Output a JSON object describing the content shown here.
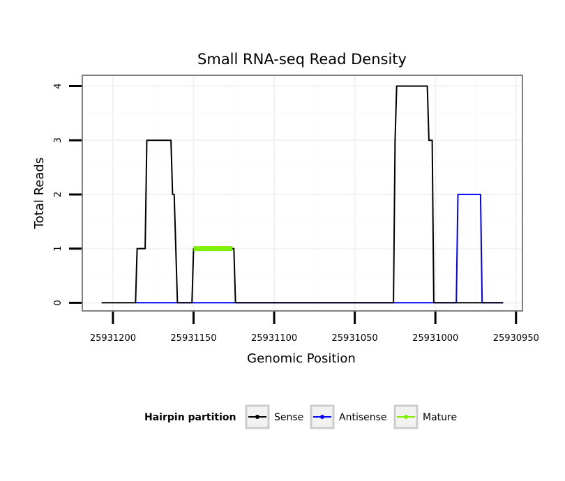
{
  "chart_data": {
    "type": "line",
    "title": "Small RNA-seq Read Density",
    "xlabel": "Genomic Position",
    "ylabel": "Total Reads",
    "x_reversed": true,
    "xlim": [
      25931219,
      25930946
    ],
    "ylim": [
      -0.15,
      4.2
    ],
    "x_ticks": [
      25931200,
      25931150,
      25931100,
      25931050,
      25931000,
      25930950
    ],
    "x_tick_labels": [
      "25931200",
      "25931150",
      "25931100",
      "25931050",
      "25931000",
      "25930950"
    ],
    "y_ticks": [
      0,
      1,
      2,
      3,
      4
    ],
    "y_tick_labels": [
      "0",
      "1",
      "2",
      "3",
      "4"
    ],
    "grid": true,
    "legend": {
      "title": "Hairpin partition",
      "position": "bottom",
      "entries": [
        "Sense",
        "Antisense",
        "Mature"
      ]
    },
    "series": [
      {
        "name": "Sense",
        "color": "#000000",
        "x": [
          25931207,
          25931186,
          25931185,
          25931180,
          25931179,
          25931164,
          25931163,
          25931162,
          25931160,
          25931151,
          25931150,
          25931125,
          25931124,
          25931026,
          25931025,
          25931024,
          25931005,
          25931004,
          25931002,
          25931001,
          25930958
        ],
        "y": [
          0,
          0,
          1,
          1,
          3,
          3,
          2,
          2,
          0,
          0,
          1,
          1,
          0,
          0,
          3,
          4,
          4,
          3,
          3,
          0,
          0
        ]
      },
      {
        "name": "Antisense",
        "color": "#0000ff",
        "x": [
          25931186,
          25931001,
          25930987,
          25930986,
          25930972,
          25930971,
          25930958
        ],
        "y": [
          0,
          0,
          0,
          2,
          2,
          0,
          0
        ]
      },
      {
        "name": "Mature",
        "color": "#7fef00",
        "x": [
          25931150,
          25931126
        ],
        "y": [
          1,
          1
        ]
      }
    ]
  }
}
